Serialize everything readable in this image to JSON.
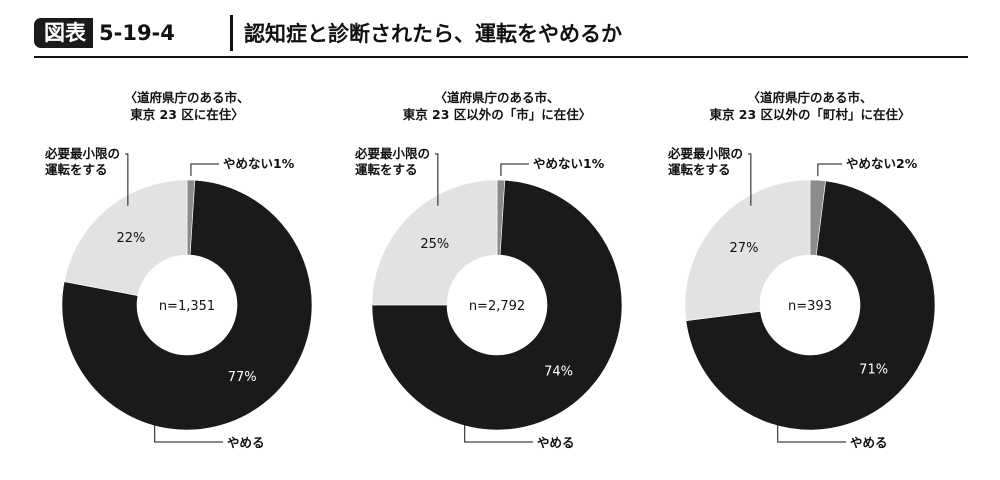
{
  "header": {
    "badge_label": "図表",
    "figure_number": "5-19-4",
    "title": "認知症と診断されたら、運転をやめるか"
  },
  "chart_data": [
    {
      "type": "pie",
      "title_lines": [
        "〈道府県庁のある市、",
        "東京 23 区に在住〉"
      ],
      "center_label": "n=1,351",
      "slices": [
        {
          "label": "やめない",
          "value": 1,
          "value_label": "1%",
          "callout": "やめない1%",
          "color": "#8c8c8c"
        },
        {
          "label": "やめる",
          "value": 77,
          "value_label": "77%",
          "callout": "やめる",
          "color": "#1a1a1a"
        },
        {
          "label": "必要最小限の運転をする",
          "value": 22,
          "value_label": "22%",
          "callout_lines": [
            "必要最小限の",
            "運転をする"
          ],
          "color": "#e2e2e2"
        }
      ]
    },
    {
      "type": "pie",
      "title_lines": [
        "〈道府県庁のある市、",
        "東京 23 区以外の「市」に在住〉"
      ],
      "center_label": "n=2,792",
      "slices": [
        {
          "label": "やめない",
          "value": 1,
          "value_label": "1%",
          "callout": "やめない1%",
          "color": "#8c8c8c"
        },
        {
          "label": "やめる",
          "value": 74,
          "value_label": "74%",
          "callout": "やめる",
          "color": "#1a1a1a"
        },
        {
          "label": "必要最小限の運転をする",
          "value": 25,
          "value_label": "25%",
          "callout_lines": [
            "必要最小限の",
            "運転をする"
          ],
          "color": "#e2e2e2"
        }
      ]
    },
    {
      "type": "pie",
      "title_lines": [
        "〈道府県庁のある市、",
        "東京 23 区以外の「町村」に在住〉"
      ],
      "center_label": "n=393",
      "slices": [
        {
          "label": "やめない",
          "value": 2,
          "value_label": "2%",
          "callout": "やめない2%",
          "color": "#8c8c8c"
        },
        {
          "label": "やめる",
          "value": 71,
          "value_label": "71%",
          "callout": "やめる",
          "color": "#1a1a1a"
        },
        {
          "label": "必要最小限の運転をする",
          "value": 27,
          "value_label": "27%",
          "callout_lines": [
            "必要最小限の",
            "運転をする"
          ],
          "color": "#e2e2e2"
        }
      ]
    }
  ]
}
